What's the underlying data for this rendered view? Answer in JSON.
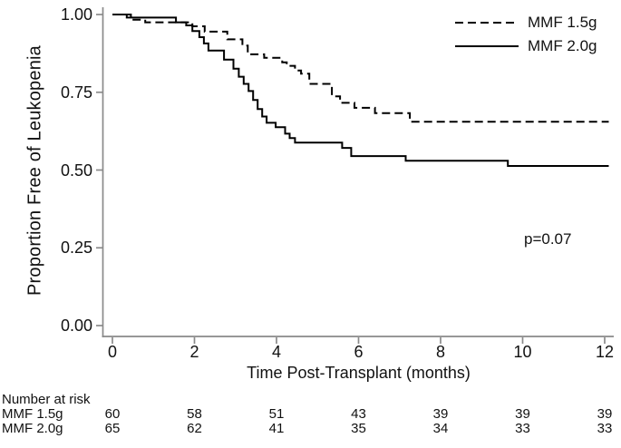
{
  "figure": {
    "background": "#ffffff",
    "text_color": "#111111",
    "axis_color": "#8a8a8a",
    "curve_color": "#000000"
  },
  "chart_data": {
    "type": "line",
    "subtype": "kaplan-meier-step",
    "title": "",
    "xlabel": "Time Post-Transplant (months)",
    "ylabel": "Proportion Free of Leukopenia",
    "xlim": [
      0,
      12
    ],
    "ylim": [
      0.0,
      1.0
    ],
    "xticks": [
      0,
      2,
      4,
      6,
      8,
      10,
      12
    ],
    "ytick_values": [
      1.0,
      0.75,
      0.5,
      0.25,
      0.0
    ],
    "ytick_labels": [
      "1.00",
      "0.75",
      "0.50",
      "0.25",
      "0.00"
    ],
    "grid": false,
    "legend_position": "top-right",
    "annotation": "p=0.07",
    "series": [
      {
        "name": "MMF 1.5g",
        "style": "dashed",
        "steps": [
          [
            0,
            1.0
          ],
          [
            0.45,
            0.983
          ],
          [
            0.8,
            0.975
          ],
          [
            1.95,
            0.962
          ],
          [
            2.25,
            0.945
          ],
          [
            2.8,
            0.92
          ],
          [
            3.17,
            0.9
          ],
          [
            3.3,
            0.872
          ],
          [
            3.7,
            0.861
          ],
          [
            4.14,
            0.846
          ],
          [
            4.25,
            0.835
          ],
          [
            4.45,
            0.82
          ],
          [
            4.6,
            0.81
          ],
          [
            4.8,
            0.777
          ],
          [
            5.35,
            0.737
          ],
          [
            5.55,
            0.716
          ],
          [
            5.9,
            0.7
          ],
          [
            6.4,
            0.683
          ],
          [
            7.25,
            0.655
          ],
          [
            12.1,
            0.655
          ]
        ]
      },
      {
        "name": "MMF 2.0g",
        "style": "solid",
        "steps": [
          [
            0,
            1.0
          ],
          [
            0.35,
            0.99
          ],
          [
            1.55,
            0.975
          ],
          [
            1.8,
            0.965
          ],
          [
            1.95,
            0.947
          ],
          [
            2.12,
            0.927
          ],
          [
            2.23,
            0.907
          ],
          [
            2.34,
            0.884
          ],
          [
            2.72,
            0.855
          ],
          [
            2.95,
            0.826
          ],
          [
            3.08,
            0.8
          ],
          [
            3.2,
            0.777
          ],
          [
            3.32,
            0.754
          ],
          [
            3.43,
            0.725
          ],
          [
            3.54,
            0.696
          ],
          [
            3.65,
            0.672
          ],
          [
            3.76,
            0.652
          ],
          [
            3.98,
            0.638
          ],
          [
            4.21,
            0.617
          ],
          [
            4.32,
            0.603
          ],
          [
            4.45,
            0.588
          ],
          [
            5.6,
            0.571
          ],
          [
            5.82,
            0.545
          ],
          [
            7.15,
            0.53
          ],
          [
            9.64,
            0.513
          ],
          [
            12.1,
            0.513
          ]
        ]
      }
    ]
  },
  "risk_table": {
    "title": "Number at risk",
    "timepoints": [
      0,
      2,
      4,
      6,
      8,
      10,
      12
    ],
    "rows": [
      {
        "label": "MMF 1.5g",
        "counts": [
          60,
          58,
          51,
          43,
          39,
          39,
          39
        ]
      },
      {
        "label": "MMF 2.0g",
        "counts": [
          65,
          62,
          41,
          35,
          34,
          33,
          33
        ]
      }
    ]
  }
}
